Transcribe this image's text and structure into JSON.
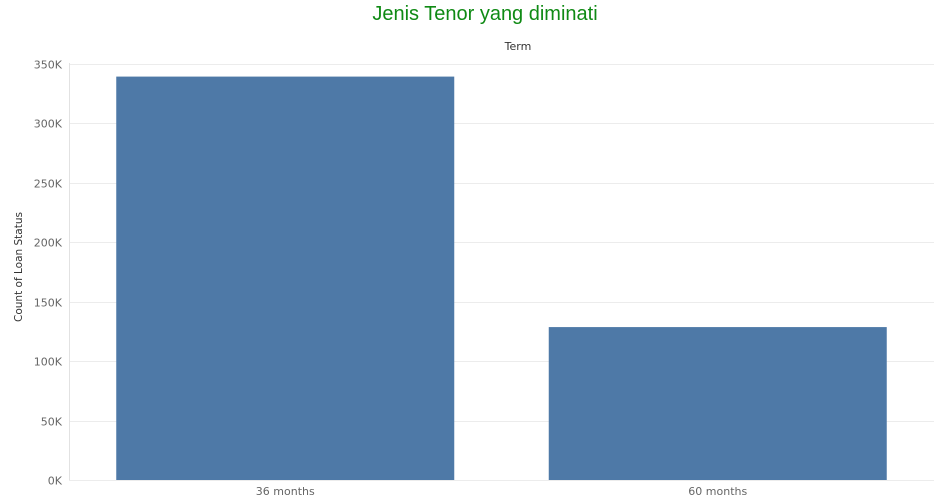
{
  "chart_data": {
    "type": "bar",
    "title": "Jenis Tenor yang diminati",
    "column_header": "Term",
    "ylabel": "Count of Loan Status",
    "xlabel": "",
    "categories": [
      "36 months",
      "60 months"
    ],
    "values": [
      339000,
      128500
    ],
    "ylim": [
      0,
      350000
    ],
    "yticks": [
      0,
      50000,
      100000,
      150000,
      200000,
      250000,
      300000,
      350000
    ],
    "ytick_labels": [
      "0K",
      "50K",
      "100K",
      "150K",
      "200K",
      "250K",
      "300K",
      "350K"
    ],
    "grid": true,
    "legend": "none"
  },
  "colors": {
    "title": "#0f8a14",
    "bar": "#4e79a7",
    "grid": "#ececec",
    "axis_text": "#666666"
  }
}
